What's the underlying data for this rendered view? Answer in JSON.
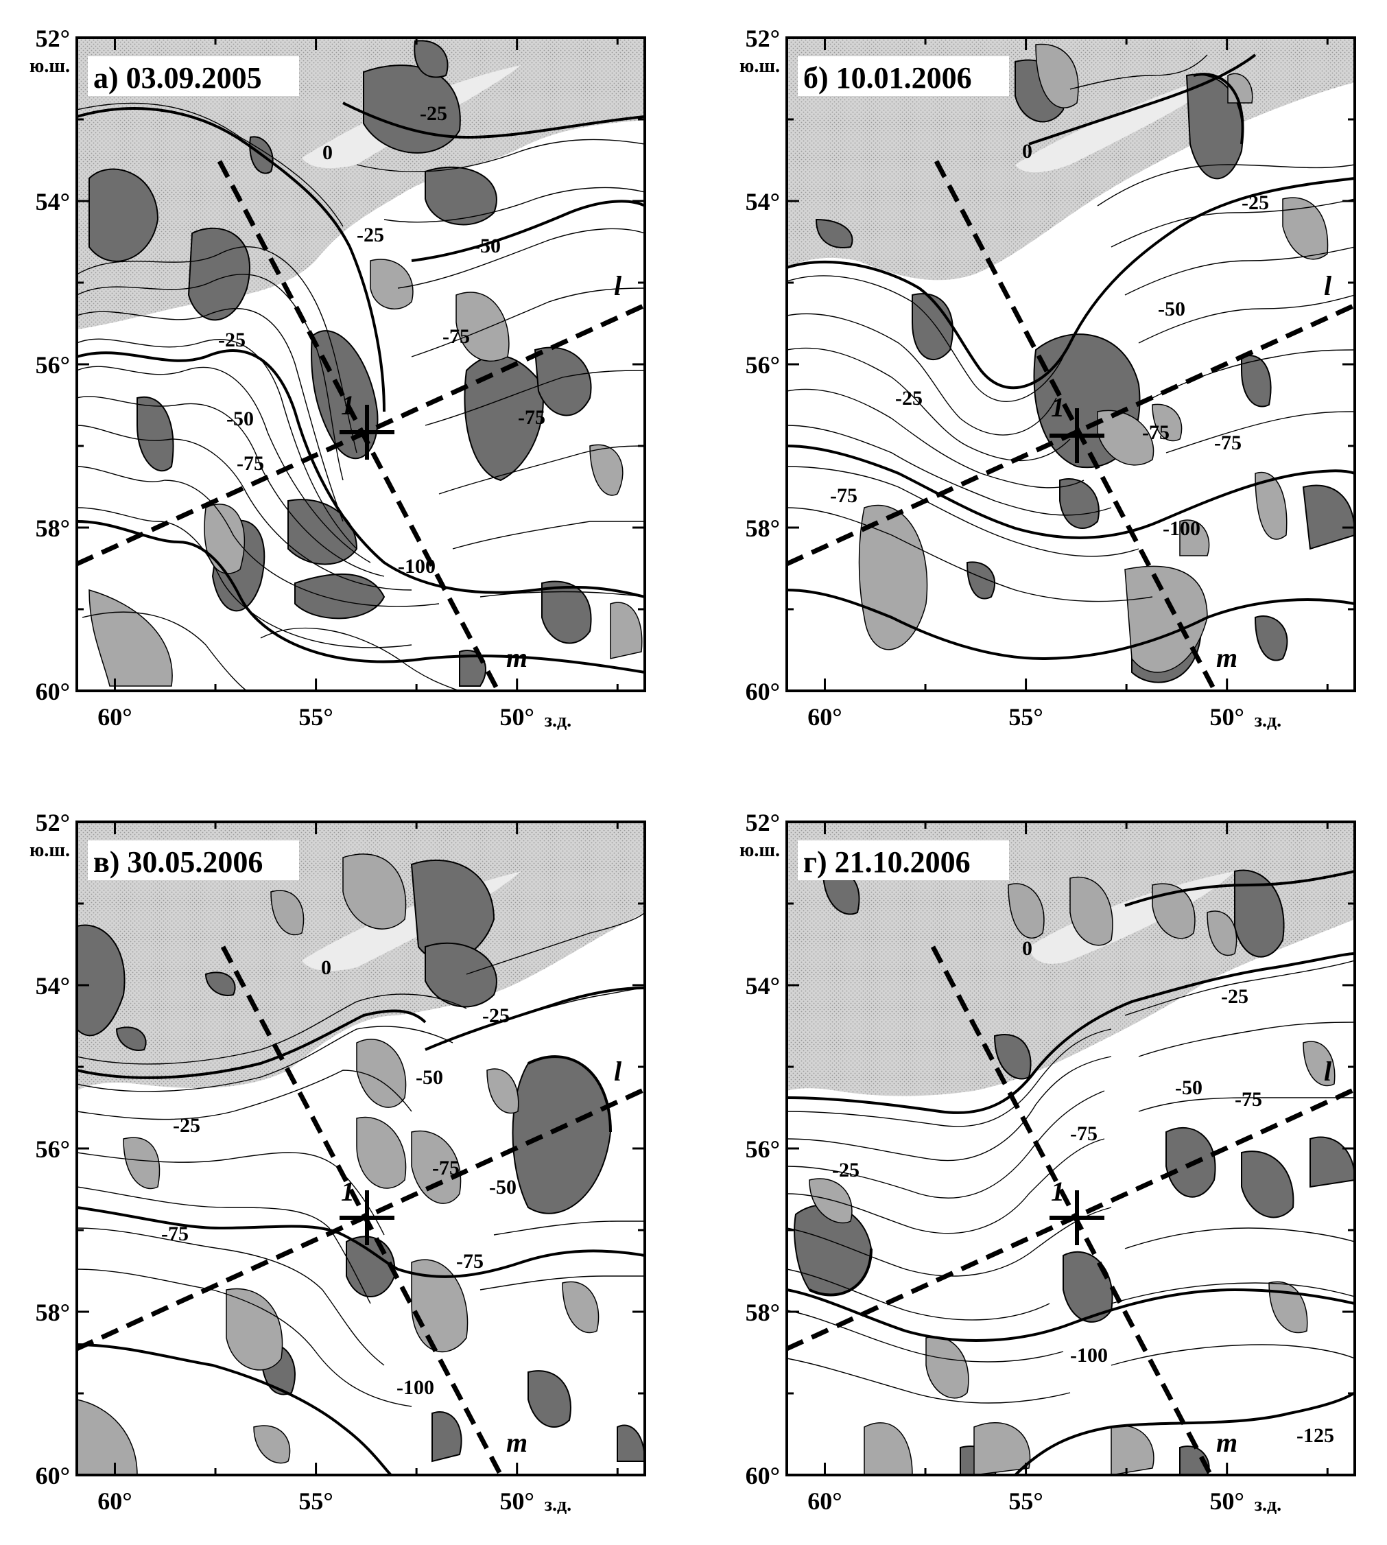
{
  "axes": {
    "lat_labels": [
      "52°",
      "54°",
      "56°",
      "58°",
      "60°"
    ],
    "lat_unit": "ю.ш.",
    "lon_labels": [
      "60°",
      "55°",
      "50°"
    ],
    "lon_unit": "з.д."
  },
  "panels": [
    {
      "title": "а) 03.09.2005",
      "contour_labels": [
        "-25",
        "0",
        "-25",
        "-50",
        "-25",
        "-50",
        "-75",
        "-75",
        "-75",
        "-100"
      ],
      "point_label": "1",
      "section_labels": [
        "l",
        "m"
      ]
    },
    {
      "title": "б) 10.01.2006",
      "contour_labels": [
        "0",
        "-25",
        "-50",
        "-25",
        "-75",
        "-75",
        "-75",
        "-100"
      ],
      "point_label": "1",
      "section_labels": [
        "l",
        "m"
      ]
    },
    {
      "title": "в) 30.05.2006",
      "contour_labels": [
        "0",
        "-25",
        "-50",
        "-25",
        "-75",
        "-75",
        "-75",
        "-50",
        "-100"
      ],
      "point_label": "1",
      "section_labels": [
        "l",
        "m"
      ]
    },
    {
      "title": "г) 21.10.2006",
      "contour_labels": [
        "0",
        "-25",
        "-50",
        "-25",
        "-75",
        "-75",
        "-100",
        "-125"
      ],
      "point_label": "1",
      "section_labels": [
        "l",
        "m"
      ]
    }
  ],
  "colors": {
    "dark_shade": "#6e6e6e",
    "mid_shade": "#a3a3a3",
    "light_shade": "#cdcdcd",
    "contour": "#000000",
    "background": "#ffffff"
  }
}
